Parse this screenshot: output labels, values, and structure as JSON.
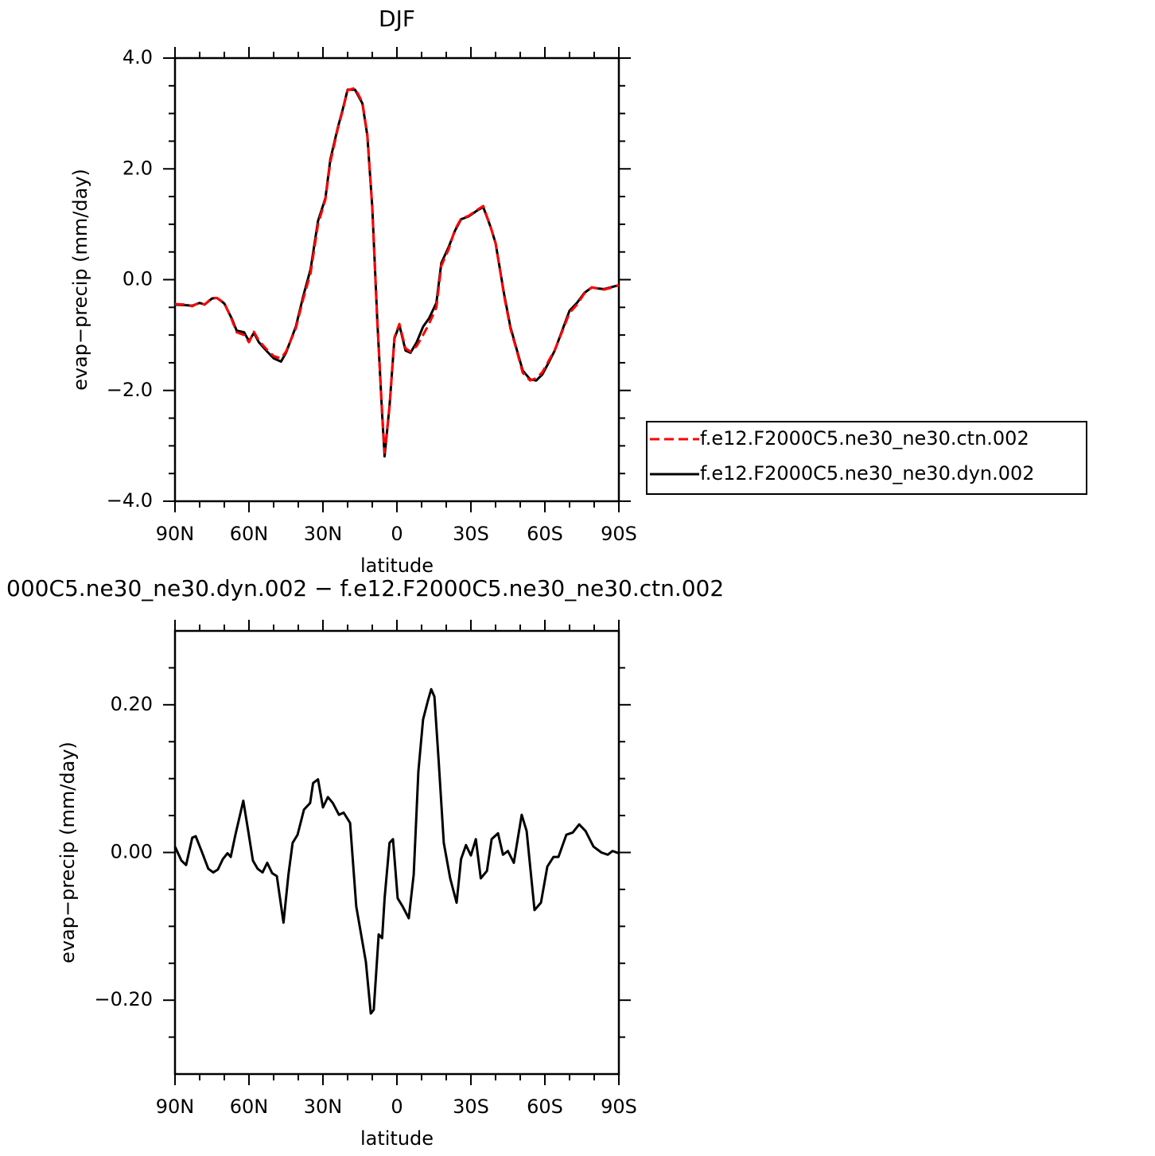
{
  "chart_data": [
    {
      "type": "line",
      "title": "DJF",
      "xlabel": "latitude",
      "ylabel": "evap−precip (mm/day)",
      "xlim": [
        90,
        -90
      ],
      "ylim": [
        -4,
        4
      ],
      "xticks": [
        {
          "value": 90,
          "label": "90N"
        },
        {
          "value": 60,
          "label": "60N"
        },
        {
          "value": 30,
          "label": "30N"
        },
        0,
        {
          "value": -30,
          "label": "30S"
        },
        {
          "value": -60,
          "label": "60S"
        },
        {
          "value": -90,
          "label": "90S"
        }
      ],
      "yticks": [
        {
          "value": 4,
          "label": "4.0"
        },
        {
          "value": 2,
          "label": "2.0"
        },
        {
          "value": 0,
          "label": "0.0"
        },
        {
          "value": -2,
          "label": "−2.0"
        },
        {
          "value": -4,
          "label": "−4.0"
        }
      ],
      "xminorticks": [
        80,
        70,
        50,
        40,
        20,
        10,
        -10,
        -20,
        -40,
        -50,
        -70,
        -80
      ],
      "yminorticks": [
        3.5,
        3,
        2.5,
        1.5,
        1,
        0.5,
        -0.5,
        -1,
        -1.5,
        -2.5,
        -3,
        -3.5
      ],
      "legend": "outside-right",
      "x": [
        90,
        86,
        83,
        80,
        78,
        75,
        73,
        70,
        67,
        65,
        62,
        60,
        58,
        56,
        53,
        50,
        47,
        45,
        41,
        38,
        35,
        32,
        29,
        27,
        24,
        22,
        20,
        17,
        14,
        12,
        10,
        8,
        6,
        5,
        3,
        1,
        -1,
        -3.5,
        -5.5,
        -8,
        -10.6,
        -13,
        -16,
        -18,
        -21,
        -23.5,
        -26,
        -29,
        -32.6,
        -35,
        -38,
        -40,
        -43.5,
        -46,
        -48.7,
        -51,
        -54,
        -56.5,
        -59,
        -61.6,
        -64,
        -67,
        -70,
        -73,
        -76,
        -79,
        -81.6,
        -84,
        -87.4,
        -90
      ],
      "series": [
        {
          "name": "f.e12.F2000C5.ne30_ne30.ctn.002",
          "color": "#ff0000",
          "linestyle": "dashed",
          "values": [
            -0.44,
            -0.45,
            -0.48,
            -0.41,
            -0.45,
            -0.33,
            -0.33,
            -0.42,
            -0.72,
            -0.95,
            -1.0,
            -1.13,
            -0.94,
            -1.1,
            -1.25,
            -1.38,
            -1.42,
            -1.3,
            -0.88,
            -0.35,
            0.12,
            1.0,
            1.45,
            2.12,
            2.72,
            3.05,
            3.42,
            3.46,
            3.2,
            2.62,
            1.3,
            -0.72,
            -2.4,
            -3.12,
            -2.3,
            -1.04,
            -0.8,
            -1.24,
            -1.3,
            -1.2,
            -1.0,
            -0.8,
            -0.5,
            0.25,
            0.55,
            0.9,
            1.1,
            1.15,
            1.26,
            1.33,
            0.95,
            0.66,
            -0.3,
            -0.88,
            -1.3,
            -1.68,
            -1.82,
            -1.78,
            -1.67,
            -1.46,
            -1.27,
            -0.94,
            -0.6,
            -0.45,
            -0.25,
            -0.14,
            -0.16,
            -0.18,
            -0.14,
            -0.1
          ]
        },
        {
          "name": "f.e12.F2000C5.ne30_ne30.dyn.002",
          "color": "#000000",
          "linestyle": "solid",
          "values": [
            -0.45,
            -0.46,
            -0.47,
            -0.42,
            -0.45,
            -0.34,
            -0.33,
            -0.43,
            -0.7,
            -0.92,
            -0.95,
            -1.11,
            -0.96,
            -1.13,
            -1.28,
            -1.42,
            -1.48,
            -1.32,
            -0.85,
            -0.3,
            0.19,
            1.06,
            1.47,
            2.17,
            2.74,
            3.07,
            3.43,
            3.43,
            3.18,
            2.6,
            1.31,
            -0.7,
            -2.43,
            -3.19,
            -2.28,
            -1.06,
            -0.82,
            -1.28,
            -1.32,
            -1.13,
            -0.85,
            -0.7,
            -0.42,
            0.3,
            0.59,
            0.88,
            1.09,
            1.14,
            1.25,
            1.31,
            0.95,
            0.66,
            -0.27,
            -0.85,
            -1.28,
            -1.64,
            -1.8,
            -1.82,
            -1.71,
            -1.49,
            -1.28,
            -0.92,
            -0.56,
            -0.42,
            -0.24,
            -0.14,
            -0.16,
            -0.17,
            -0.13,
            -0.1
          ]
        }
      ]
    },
    {
      "type": "line",
      "title": "000C5.ne30_ne30.dyn.002 − f.e12.F2000C5.ne30_ne30.ctn.002",
      "xlabel": "latitude",
      "ylabel": "evap−precip (mm/day)",
      "xlim": [
        90,
        -90
      ],
      "ylim": [
        -0.3,
        0.3
      ],
      "xticks": [
        {
          "value": 90,
          "label": "90N"
        },
        {
          "value": 60,
          "label": "60N"
        },
        {
          "value": 30,
          "label": "30N"
        },
        0,
        {
          "value": -30,
          "label": "30S"
        },
        {
          "value": -60,
          "label": "60S"
        },
        {
          "value": -90,
          "label": "90S"
        }
      ],
      "yticks": [
        {
          "value": 0.2,
          "label": "0.20"
        },
        {
          "value": 0,
          "label": "0.00"
        },
        {
          "value": -0.2,
          "label": "−0.20"
        }
      ],
      "xminorticks": [
        80,
        70,
        50,
        40,
        20,
        10,
        -10,
        -20,
        -40,
        -50,
        -70,
        -80
      ],
      "yminorticks": [
        0.25,
        0.15,
        0.1,
        0.05,
        -0.05,
        -0.1,
        -0.15,
        -0.25
      ],
      "x": [
        90,
        87.4,
        85.5,
        83,
        81.6,
        79,
        76.5,
        74.5,
        72.6,
        70.6,
        68.7,
        67.4,
        65.5,
        62.3,
        60.3,
        58.4,
        56.5,
        54.5,
        52.6,
        50.6,
        48.7,
        46,
        44,
        42.3,
        40.3,
        37.7,
        35.2,
        34,
        32,
        30,
        28,
        26,
        23.5,
        21.6,
        19,
        16.5,
        12.6,
        10.6,
        9.4,
        7.4,
        6,
        5,
        3,
        1.6,
        -0.3,
        -2.3,
        -4.8,
        -6.8,
        -8.7,
        -10.6,
        -12.6,
        -13.9,
        -15.2,
        -17,
        -19,
        -21.6,
        -24.2,
        -26,
        -28,
        -30,
        -32,
        -34,
        -36.5,
        -38.4,
        -41,
        -43,
        -45,
        -47.4,
        -50.6,
        -52.6,
        -55.8,
        -58.4,
        -61,
        -63.5,
        -65.5,
        -68.7,
        -71.3,
        -73.9,
        -76.5,
        -79.7,
        -82.9,
        -85.5,
        -87.4,
        -90
      ],
      "series": [
        {
          "name": "difference",
          "color": "#000000",
          "linestyle": "solid",
          "values": [
            0.008,
            -0.011,
            -0.017,
            0.02,
            0.022,
            0.0,
            -0.022,
            -0.027,
            -0.023,
            -0.009,
            -0.001,
            -0.006,
            0.024,
            0.07,
            0.029,
            -0.011,
            -0.022,
            -0.027,
            -0.014,
            -0.028,
            -0.032,
            -0.095,
            -0.03,
            0.013,
            0.024,
            0.058,
            0.067,
            0.094,
            0.099,
            0.061,
            0.075,
            0.067,
            0.051,
            0.054,
            0.04,
            -0.073,
            -0.148,
            -0.218,
            -0.213,
            -0.111,
            -0.116,
            -0.062,
            0.013,
            0.018,
            -0.062,
            -0.073,
            -0.089,
            -0.03,
            0.11,
            0.18,
            0.206,
            0.221,
            0.211,
            0.12,
            0.013,
            -0.035,
            -0.068,
            -0.009,
            0.01,
            -0.004,
            0.018,
            -0.035,
            -0.025,
            0.018,
            0.026,
            -0.003,
            0.002,
            -0.014,
            0.051,
            0.029,
            -0.078,
            -0.068,
            -0.019,
            -0.006,
            -0.006,
            0.024,
            0.027,
            0.038,
            0.029,
            0.008,
            0.0,
            -0.003,
            0.002,
            -0.001
          ]
        }
      ]
    }
  ]
}
